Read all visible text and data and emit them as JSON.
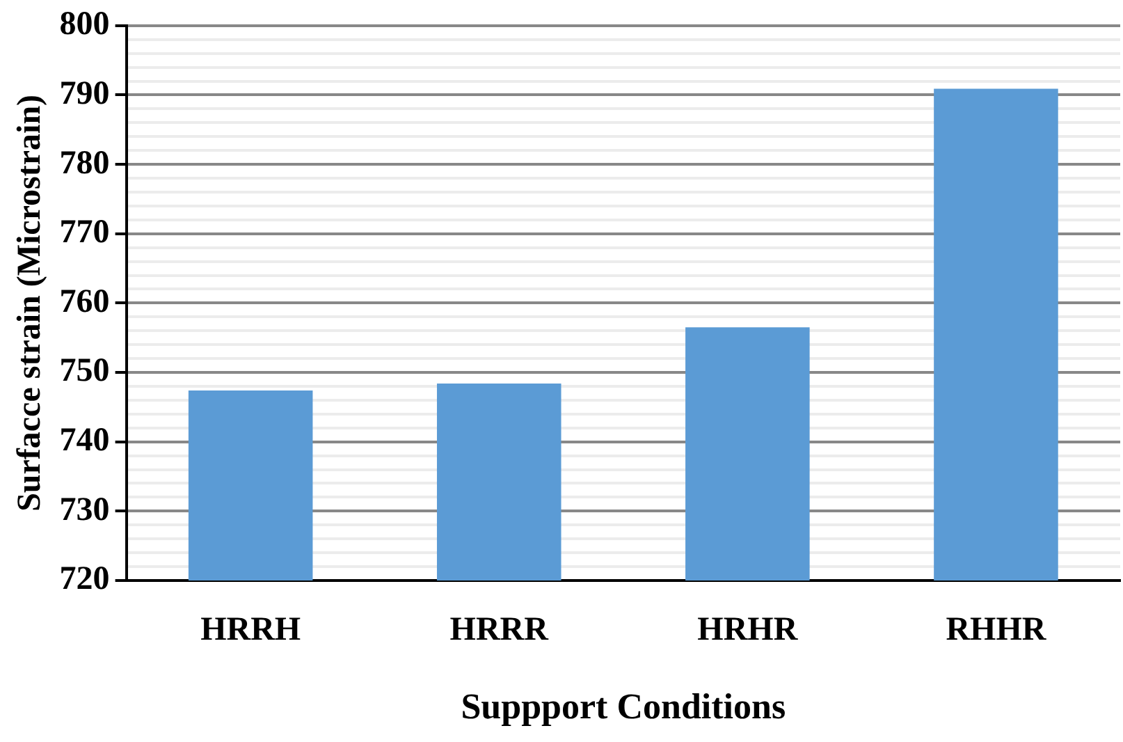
{
  "chart_data": {
    "type": "bar",
    "xlabel": "Suppport Conditions",
    "ylabel": "Surfacce strain (Microstrain)",
    "categories": [
      "HRRH",
      "HRRR",
      "HRHR",
      "RHHR"
    ],
    "values": [
      747.4,
      748.4,
      756.5,
      790.9
    ],
    "color": "#5b9bd5",
    "ylim": [
      720,
      800
    ],
    "yticks": [
      720,
      {
        "value": 722,
        "label": null
      },
      {
        "value": 724,
        "label": null
      },
      {
        "value": 726,
        "label": null
      },
      {
        "value": 728,
        "label": null
      },
      730,
      {
        "value": 732,
        "label": null
      },
      {
        "value": 734,
        "label": null
      },
      {
        "value": 736,
        "label": null
      },
      {
        "value": 738,
        "label": null
      },
      740,
      {
        "value": 742,
        "label": null
      },
      {
        "value": 744,
        "label": null
      },
      {
        "value": 746,
        "label": null
      },
      {
        "value": 748,
        "label": null
      },
      750,
      {
        "value": 752,
        "label": null
      },
      {
        "value": 754,
        "label": null
      },
      {
        "value": 756,
        "label": null
      },
      {
        "value": 758,
        "label": null
      },
      760,
      {
        "value": 762,
        "label": null
      },
      {
        "value": 764,
        "label": null
      },
      {
        "value": 766,
        "label": null
      },
      {
        "value": 768,
        "label": null
      },
      770,
      {
        "value": 772,
        "label": null
      },
      {
        "value": 774,
        "label": null
      },
      {
        "value": 776,
        "label": null
      },
      {
        "value": 778,
        "label": null
      },
      780,
      {
        "value": 782,
        "label": null
      },
      {
        "value": 784,
        "label": null
      },
      {
        "value": 786,
        "label": null
      },
      {
        "value": 788,
        "label": null
      },
      790,
      {
        "value": 792,
        "label": null
      },
      {
        "value": 794,
        "label": null
      },
      {
        "value": 796,
        "label": null
      },
      {
        "value": 798,
        "label": null
      },
      800
    ],
    "grid": "y",
    "legend": false
  }
}
